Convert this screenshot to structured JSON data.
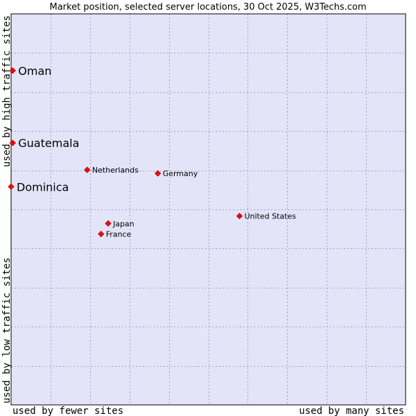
{
  "colors": {
    "plot_background": "#e3e4f8",
    "grid": "#a0a0c0",
    "border": "#000000",
    "point_fill": "#ff0000",
    "point_stroke": "#8b0000"
  },
  "chart_data": {
    "type": "scatter",
    "title": "Market position, selected server locations, 30 Oct 2025, W3Techs.com",
    "xlabel_low": "used by fewer sites",
    "xlabel_high": "used by many sites",
    "ylabel_low": "used by low traffic sites",
    "ylabel_high": "used by high traffic sites",
    "xlim": [
      0,
      10
    ],
    "ylim": [
      0,
      10
    ],
    "grid": true,
    "points": [
      {
        "name": "Oman",
        "x": 0.04,
        "y": 8.55,
        "emphasis": true
      },
      {
        "name": "Guatemala",
        "x": 0.04,
        "y": 6.7,
        "emphasis": true
      },
      {
        "name": "Dominica",
        "x": 0.0,
        "y": 5.58,
        "emphasis": true
      },
      {
        "name": "Netherlands",
        "x": 1.93,
        "y": 6.01,
        "emphasis": false
      },
      {
        "name": "Germany",
        "x": 3.72,
        "y": 5.92,
        "emphasis": false
      },
      {
        "name": "United States",
        "x": 5.79,
        "y": 4.83,
        "emphasis": false
      },
      {
        "name": "Japan",
        "x": 2.46,
        "y": 4.64,
        "emphasis": false
      },
      {
        "name": "France",
        "x": 2.28,
        "y": 4.37,
        "emphasis": false
      }
    ]
  }
}
